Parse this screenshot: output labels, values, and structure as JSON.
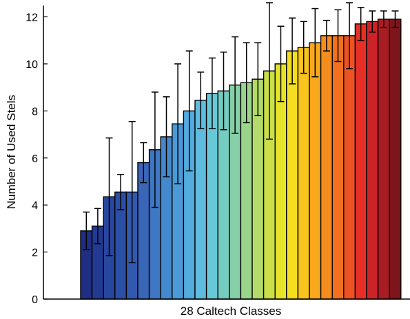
{
  "chart_data": {
    "type": "bar",
    "title": "",
    "xlabel": "28 Caltech Classes",
    "ylabel": "Number of Used Stels",
    "ylim": [
      0,
      13.3
    ],
    "yticks": [
      0,
      2,
      4,
      6,
      8,
      10,
      12
    ],
    "grid": false,
    "legend": "none",
    "values": [
      2.9,
      3.1,
      4.35,
      4.55,
      4.55,
      5.8,
      6.35,
      6.9,
      7.45,
      8.0,
      8.45,
      8.75,
      8.85,
      9.1,
      9.2,
      9.35,
      9.7,
      10.0,
      10.55,
      10.7,
      10.9,
      11.2,
      11.2,
      11.2,
      11.7,
      11.8,
      11.9,
      11.9
    ],
    "errors": [
      0.8,
      0.75,
      2.5,
      0.75,
      3.0,
      0.85,
      2.45,
      1.7,
      2.55,
      2.55,
      1.2,
      1.5,
      1.65,
      2.05,
      1.7,
      1.55,
      2.9,
      1.6,
      1.4,
      1.1,
      1.45,
      0.65,
      1.1,
      1.4,
      0.7,
      0.45,
      0.35,
      0.35
    ],
    "colors": [
      "#1f2d82",
      "#233a92",
      "#27469e",
      "#2c4fa6",
      "#3159ae",
      "#3a66b8",
      "#3f77c4",
      "#4488ce",
      "#4b9ad7",
      "#53abde",
      "#5fbcdf",
      "#69c8d8",
      "#75ccc0",
      "#85d0a6",
      "#9ad58c",
      "#b3da6b",
      "#cbdf48",
      "#e5e32a",
      "#f5de1f",
      "#f8c41d",
      "#f7a81d",
      "#f58c1e",
      "#f2701f",
      "#ed5222",
      "#e63026",
      "#cc2328",
      "#a81c23",
      "#7e151c"
    ]
  }
}
